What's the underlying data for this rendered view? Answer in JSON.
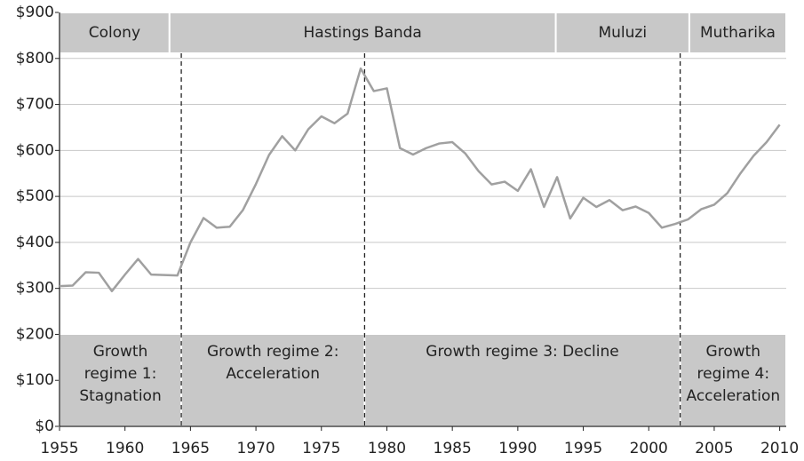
{
  "chart_data": {
    "type": "line",
    "x": [
      1955,
      1956,
      1957,
      1958,
      1959,
      1960,
      1961,
      1962,
      1963,
      1964,
      1965,
      1966,
      1967,
      1968,
      1969,
      1970,
      1971,
      1972,
      1973,
      1974,
      1975,
      1976,
      1977,
      1978,
      1979,
      1980,
      1981,
      1982,
      1983,
      1984,
      1985,
      1986,
      1987,
      1988,
      1989,
      1990,
      1991,
      1992,
      1993,
      1994,
      1995,
      1996,
      1997,
      1998,
      1999,
      2000,
      2001,
      2002,
      2003,
      2004,
      2005,
      2006,
      2007,
      2008,
      2009,
      2010
    ],
    "series": [
      {
        "color": "#a0a0a0",
        "values": [
          305,
          306,
          335,
          334,
          294,
          330,
          364,
          330,
          329,
          328,
          400,
          453,
          432,
          434,
          470,
          527,
          590,
          631,
          600,
          646,
          674,
          659,
          680,
          778,
          729,
          735,
          605,
          591,
          605,
          615,
          618,
          593,
          555,
          526,
          532,
          512,
          559,
          477,
          542,
          452,
          497,
          477,
          492,
          470,
          478,
          464,
          432,
          440,
          450,
          472,
          482,
          507,
          550,
          588,
          618,
          656
        ]
      }
    ],
    "xlim": [
      1955,
      2010.5
    ],
    "xticks": [
      1955,
      1960,
      1965,
      1970,
      1975,
      1980,
      1985,
      1990,
      1995,
      2000,
      2005,
      2010
    ],
    "ylim": [
      0,
      900
    ],
    "yticks": [
      {
        "value": 0,
        "label": "$0"
      },
      {
        "value": 100,
        "label": "$100"
      },
      {
        "value": 200,
        "label": "$200"
      },
      {
        "value": 300,
        "label": "$300"
      },
      {
        "value": 400,
        "label": "$400"
      },
      {
        "value": 500,
        "label": "$500"
      },
      {
        "value": 600,
        "label": "$600"
      },
      {
        "value": 700,
        "label": "$700"
      },
      {
        "value": 800,
        "label": "$800"
      },
      {
        "value": 900,
        "label": "$900"
      }
    ],
    "grid": true,
    "leaders": [
      {
        "label": "Colony",
        "start": 1955,
        "end": 1963.4
      },
      {
        "label": "Hastings Banda",
        "start": 1963.4,
        "end": 1992.9
      },
      {
        "label": "Muluzi",
        "start": 1992.9,
        "end": 2003.1
      },
      {
        "label": "Mutharika",
        "start": 2003.1,
        "end": 2010.5
      }
    ],
    "regimes": [
      {
        "lines": [
          "Growth",
          "regime 1:",
          "Stagnation"
        ],
        "start": 1955,
        "end": 1964.3
      },
      {
        "lines": [
          "Growth regime 2:",
          "Acceleration"
        ],
        "start": 1964.3,
        "end": 1978.3
      },
      {
        "lines": [
          "Growth regime 3: Decline"
        ],
        "start": 1978.3,
        "end": 2002.4
      },
      {
        "lines": [
          "Growth",
          "regime 4:",
          "Acceleration"
        ],
        "start": 2002.4,
        "end": 2010.5
      }
    ]
  }
}
